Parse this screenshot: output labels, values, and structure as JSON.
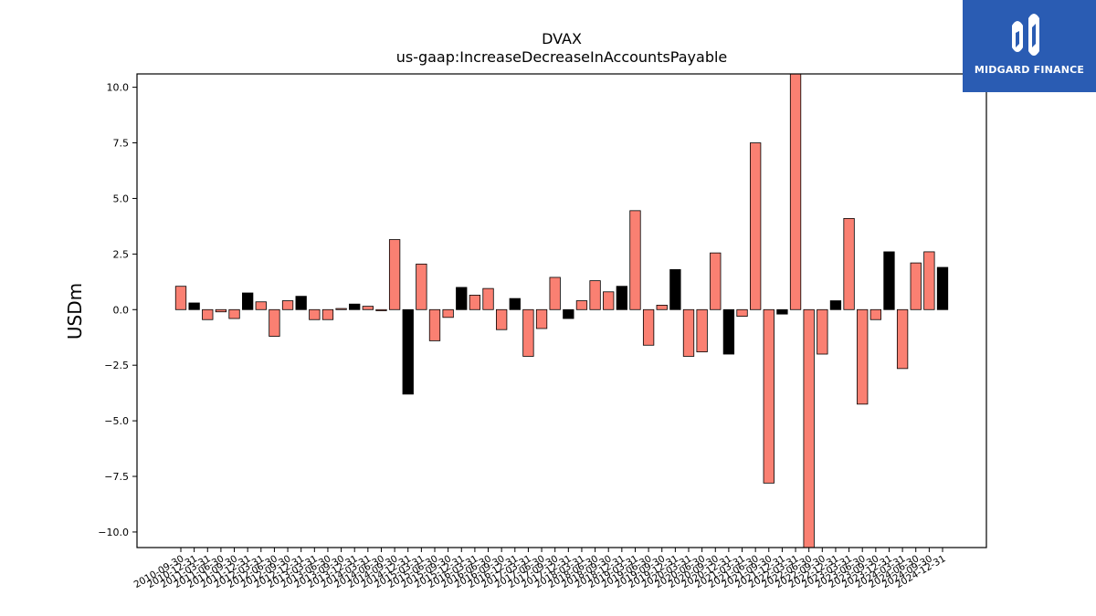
{
  "logo": {
    "text": "MIDGARD FINANCE",
    "color": "#2a5cb3"
  },
  "chart_data": {
    "type": "bar",
    "title": "DVAX",
    "subtitle": "us-gaap:IncreaseDecreaseInAccountsPayable",
    "ylabel": "USDm",
    "xlabel": "",
    "ylim": [
      -10.7,
      10.6
    ],
    "yticks": [
      -10.0,
      -7.5,
      -5.0,
      -2.5,
      0.0,
      2.5,
      5.0,
      7.5,
      10.0
    ],
    "grid": false,
    "colors": {
      "quarter": "#fa8072",
      "annual": "#000000"
    },
    "categories": [
      "2010-09-30",
      "2010-12-31",
      "2011-03-31",
      "2011-06-30",
      "2011-09-30",
      "2011-12-31",
      "2012-03-31",
      "2012-06-30",
      "2012-09-30",
      "2012-12-31",
      "2013-03-31",
      "2013-06-30",
      "2013-09-30",
      "2013-12-31",
      "2014-03-31",
      "2014-06-30",
      "2014-09-30",
      "2014-12-31",
      "2015-03-31",
      "2015-06-30",
      "2015-09-30",
      "2015-12-31",
      "2016-03-31",
      "2016-06-30",
      "2016-09-30",
      "2016-12-31",
      "2017-03-31",
      "2017-06-30",
      "2017-09-30",
      "2017-12-31",
      "2018-03-31",
      "2018-06-30",
      "2018-09-30",
      "2018-12-31",
      "2019-03-31",
      "2019-06-30",
      "2019-09-30",
      "2019-12-31",
      "2020-03-31",
      "2020-06-30",
      "2020-09-30",
      "2020-12-31",
      "2021-03-31",
      "2021-06-30",
      "2021-09-30",
      "2021-12-31",
      "2022-03-31",
      "2022-06-30",
      "2022-09-30",
      "2022-12-31",
      "2023-03-31",
      "2023-06-30",
      "2023-09-30",
      "2023-12-31",
      "2024-03-31",
      "2024-06-30",
      "2024-09-30",
      "2024-12-31"
    ],
    "values": [
      1.05,
      0.3,
      -0.45,
      -0.1,
      -0.4,
      0.75,
      0.35,
      -1.2,
      0.4,
      0.6,
      -0.45,
      -0.45,
      0.05,
      0.25,
      0.15,
      -0.05,
      3.15,
      -3.8,
      2.05,
      -1.4,
      -0.35,
      1.0,
      0.65,
      0.95,
      -0.9,
      0.5,
      -2.1,
      -0.85,
      1.45,
      -0.4,
      0.4,
      1.3,
      0.8,
      1.05,
      4.45,
      -1.6,
      0.2,
      1.8,
      -2.1,
      -1.9,
      2.55,
      -2.0,
      -0.3,
      7.5,
      -7.8,
      -0.2,
      10.6,
      -10.7,
      -2.0,
      0.4,
      4.1,
      -4.25,
      -0.45,
      2.6,
      -2.65,
      2.1,
      2.6,
      1.9
    ],
    "annual": [
      false,
      true,
      false,
      false,
      false,
      true,
      false,
      false,
      false,
      true,
      false,
      false,
      false,
      true,
      false,
      false,
      false,
      true,
      false,
      false,
      false,
      true,
      false,
      false,
      false,
      true,
      false,
      false,
      false,
      true,
      false,
      false,
      false,
      true,
      false,
      false,
      false,
      true,
      false,
      false,
      false,
      true,
      false,
      false,
      false,
      true,
      false,
      false,
      false,
      true,
      false,
      false,
      false,
      true,
      false,
      false,
      false,
      true
    ]
  }
}
